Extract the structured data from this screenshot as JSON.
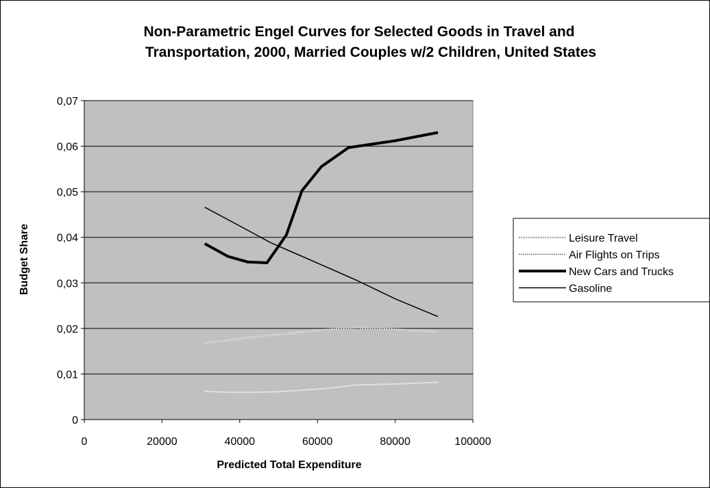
{
  "chart_data": {
    "type": "line",
    "title": [
      "Non-Parametric Engel Curves for Selected Goods in Travel and",
      "Transportation, 2000, Married Couples w/2 Children, United States"
    ],
    "xlabel": "Predicted Total Expenditure",
    "ylabel": "Budget Share",
    "xlim": [
      0,
      100000
    ],
    "ylim": [
      0,
      0.07
    ],
    "xticks": [
      0,
      20000,
      40000,
      60000,
      80000,
      100000
    ],
    "xtick_labels": [
      "0",
      "20000",
      "40000",
      "60000",
      "80000",
      "100000"
    ],
    "yticks": [
      0,
      0.01,
      0.02,
      0.03,
      0.04,
      0.05,
      0.06,
      0.07
    ],
    "ytick_labels": [
      "0",
      "0,01",
      "0,02",
      "0,03",
      "0,04",
      "0,05",
      "0,06",
      "0,07"
    ],
    "grid": "horizontal",
    "plot_background": "#c0c0c0",
    "legend_position": "right",
    "series": [
      {
        "name": "Leisure Travel",
        "style": "dotted-light-thick",
        "color": "#d9d9d9",
        "points": [
          [
            31000,
            0.0168
          ],
          [
            38000,
            0.0175
          ],
          [
            45000,
            0.0183
          ],
          [
            52000,
            0.0188
          ],
          [
            60000,
            0.0196
          ],
          [
            70000,
            0.0202
          ],
          [
            80000,
            0.0198
          ],
          [
            91000,
            0.0193
          ]
        ]
      },
      {
        "name": "Air Flights on Trips",
        "style": "dotted-white",
        "color": "#ffffff",
        "points": [
          [
            31000,
            0.0062
          ],
          [
            37000,
            0.006
          ],
          [
            43000,
            0.006
          ],
          [
            50000,
            0.0061
          ],
          [
            57000,
            0.0065
          ],
          [
            63000,
            0.0069
          ],
          [
            70000,
            0.0076
          ],
          [
            80000,
            0.0078
          ],
          [
            91000,
            0.0082
          ]
        ]
      },
      {
        "name": "New Cars and Trucks",
        "style": "solid-thick",
        "color": "#000000",
        "points": [
          [
            31000,
            0.0386
          ],
          [
            37000,
            0.0358
          ],
          [
            42000,
            0.0346
          ],
          [
            47000,
            0.0344
          ],
          [
            52000,
            0.0405
          ],
          [
            56000,
            0.0502
          ],
          [
            61000,
            0.0555
          ],
          [
            68000,
            0.0597
          ],
          [
            80000,
            0.0612
          ],
          [
            91000,
            0.063
          ]
        ]
      },
      {
        "name": "Gasoline",
        "style": "solid-thin",
        "color": "#000000",
        "points": [
          [
            31000,
            0.0466
          ],
          [
            40000,
            0.0425
          ],
          [
            48000,
            0.0388
          ],
          [
            55000,
            0.0362
          ],
          [
            62000,
            0.0336
          ],
          [
            70000,
            0.0306
          ],
          [
            80000,
            0.0265
          ],
          [
            91000,
            0.0226
          ]
        ]
      }
    ]
  }
}
